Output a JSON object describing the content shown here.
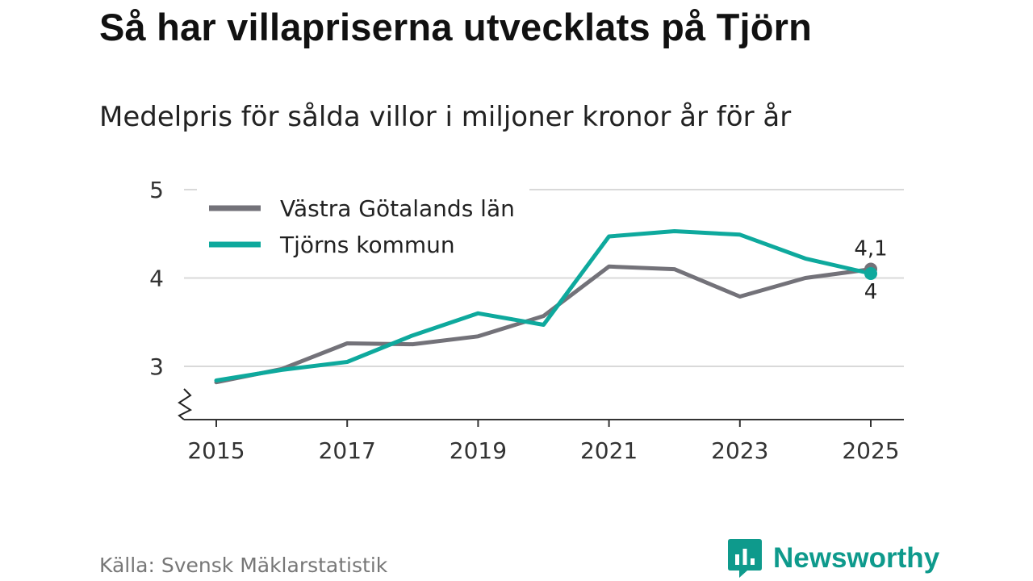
{
  "header": {
    "title": "Så har villapriserna utvecklats på Tjörn",
    "subtitle": "Medelpris för sålda villor i miljoner kronor år för år"
  },
  "footer": {
    "source": "Källa: Svensk Mäklarstatistik",
    "brand": "Newsworthy",
    "brand_color": "#0e9a8c"
  },
  "chart_data": {
    "type": "line",
    "title": "Så har villapriserna utvecklats på Tjörn",
    "subtitle": "Medelpris för sålda villor i miljoner kronor år för år",
    "xlabel": "",
    "ylabel": "",
    "x": [
      2015,
      2016,
      2017,
      2018,
      2019,
      2020,
      2021,
      2022,
      2023,
      2024,
      2025
    ],
    "x_ticks": [
      "2015",
      "2017",
      "2019",
      "2021",
      "2023",
      "2025"
    ],
    "y_ticks": [
      "3",
      "4",
      "5"
    ],
    "ylim": [
      2.4,
      5
    ],
    "axis_break": true,
    "grid": true,
    "legend_position": "top-left",
    "series": [
      {
        "name": "Västra Götalands län",
        "color": "#737279",
        "values": [
          2.82,
          2.97,
          3.26,
          3.25,
          3.34,
          3.57,
          4.13,
          4.1,
          3.79,
          4.0,
          4.1
        ],
        "end_label": "4,1"
      },
      {
        "name": "Tjörns kommun",
        "color": "#0ea99d",
        "values": [
          2.84,
          2.96,
          3.05,
          3.35,
          3.6,
          3.47,
          4.47,
          4.53,
          4.49,
          4.22,
          4.05
        ],
        "end_label": "4"
      }
    ]
  }
}
